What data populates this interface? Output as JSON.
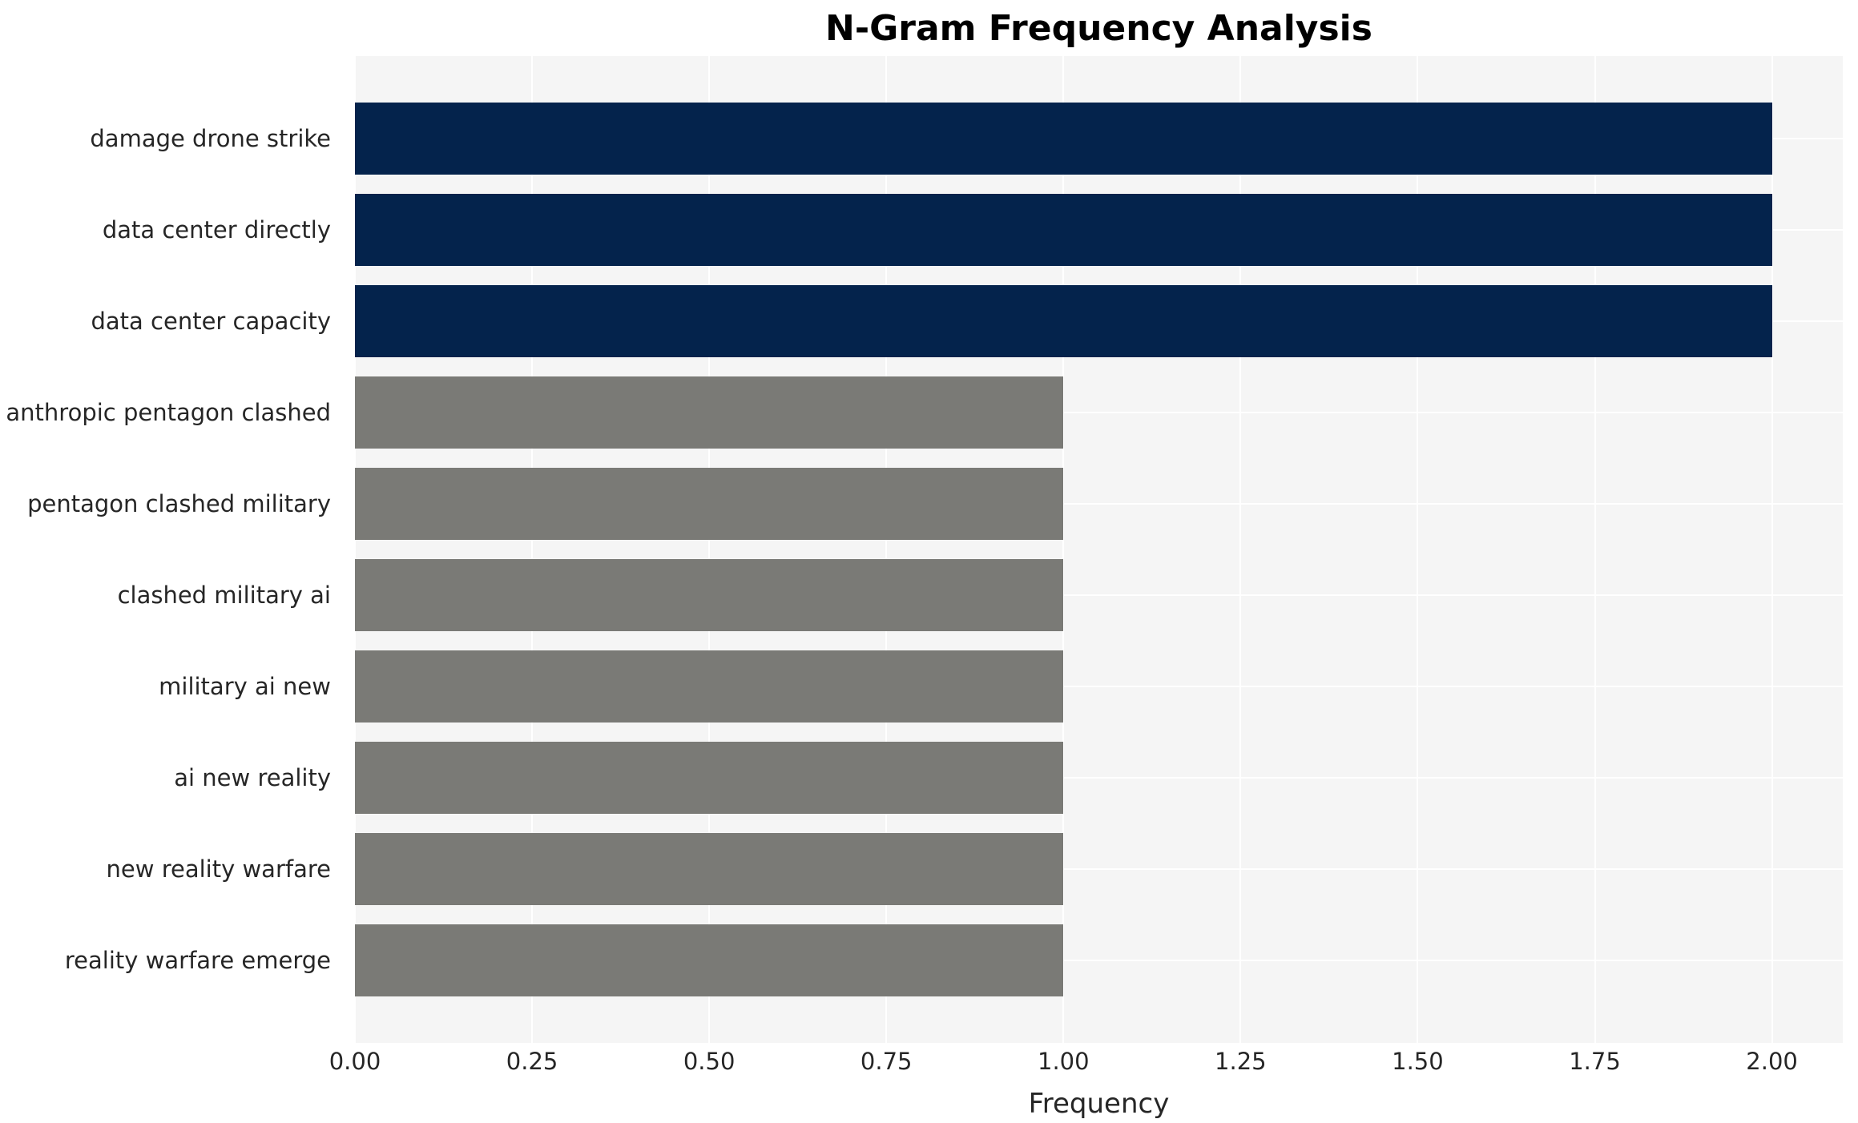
{
  "chart_data": {
    "type": "bar",
    "orientation": "horizontal",
    "title": "N-Gram Frequency Analysis",
    "xlabel": "Frequency",
    "ylabel": "",
    "legend": "none",
    "grid": true,
    "xlim": [
      0,
      2.1
    ],
    "xtick_values": [
      0,
      0.25,
      0.5,
      0.75,
      1.0,
      1.25,
      1.5,
      1.75,
      2.0
    ],
    "xtick_labels": [
      "0.00",
      "0.25",
      "0.50",
      "0.75",
      "1.00",
      "1.25",
      "1.50",
      "1.75",
      "2.00"
    ],
    "categories": [
      "damage drone strike",
      "data center directly",
      "data center capacity",
      "anthropic pentagon clashed",
      "pentagon clashed military",
      "clashed military ai",
      "military ai new",
      "ai new reality",
      "new reality warfare",
      "reality warfare emerge"
    ],
    "values": [
      2,
      2,
      2,
      1,
      1,
      1,
      1,
      1,
      1,
      1
    ],
    "bar_colors": [
      "#04234c",
      "#04234c",
      "#04234c",
      "#7a7a76",
      "#7a7a76",
      "#7a7a76",
      "#7a7a76",
      "#7a7a76",
      "#7a7a76",
      "#7a7a76"
    ]
  },
  "style": {
    "panel_bg": "#f5f5f5",
    "grid_color": "#ffffff",
    "text_color": "#262626",
    "title_color": "#000000"
  }
}
